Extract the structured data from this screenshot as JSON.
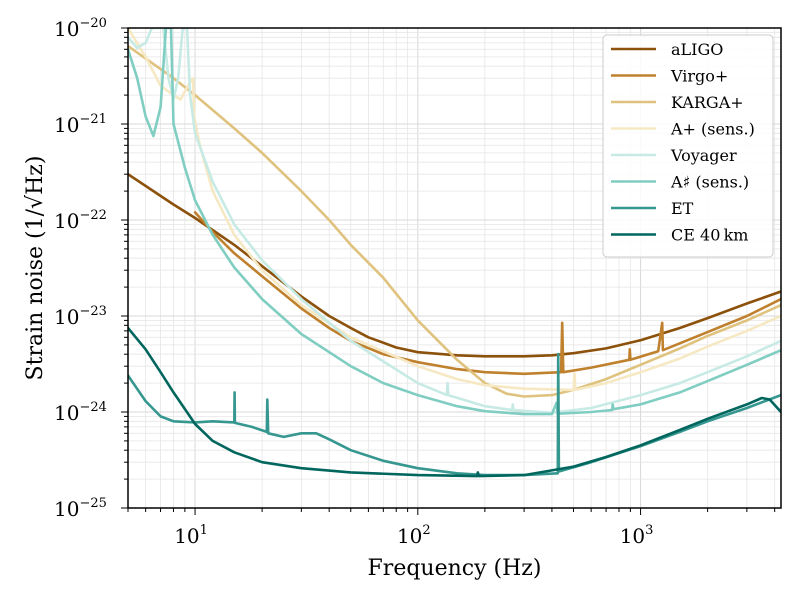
{
  "chart_data": {
    "type": "line",
    "title": "",
    "xlabel": "Frequency (Hz)",
    "ylabel": "Strain noise (1/√Hz)",
    "xscale": "log",
    "yscale": "log",
    "xlim": [
      5,
      4270
    ],
    "ylim": [
      1e-25,
      1e-20
    ],
    "grid": true,
    "legend_position": "top-right",
    "x_ticks": [
      {
        "value": 10,
        "base": "10",
        "exp": "1"
      },
      {
        "value": 100,
        "base": "10",
        "exp": "2"
      },
      {
        "value": 1000,
        "base": "10",
        "exp": "3"
      }
    ],
    "y_ticks": [
      {
        "value": 1e-25,
        "base": "10",
        "exp": "−25"
      },
      {
        "value": 1e-24,
        "base": "10",
        "exp": "−24"
      },
      {
        "value": 1e-23,
        "base": "10",
        "exp": "−23"
      },
      {
        "value": 1e-22,
        "base": "10",
        "exp": "−22"
      },
      {
        "value": 1e-21,
        "base": "10",
        "exp": "−21"
      },
      {
        "value": 1e-20,
        "base": "10",
        "exp": "−20"
      }
    ],
    "series": [
      {
        "name": "aLIGO",
        "color": "#8c510a",
        "points": [
          [
            5,
            3e-22
          ],
          [
            8,
            1.45e-22
          ],
          [
            10,
            1.05e-22
          ],
          [
            15,
            5.5e-23
          ],
          [
            20,
            3.3e-23
          ],
          [
            30,
            1.6e-23
          ],
          [
            40,
            1e-23
          ],
          [
            50,
            7.5e-24
          ],
          [
            60,
            6e-24
          ],
          [
            80,
            4.7e-24
          ],
          [
            100,
            4.2e-24
          ],
          [
            150,
            3.9e-24
          ],
          [
            200,
            3.8e-24
          ],
          [
            300,
            3.8e-24
          ],
          [
            400,
            3.9e-24
          ],
          [
            500,
            4.1e-24
          ],
          [
            700,
            4.6e-24
          ],
          [
            1000,
            5.6e-24
          ],
          [
            1500,
            7.5e-24
          ],
          [
            2000,
            9.5e-24
          ],
          [
            3000,
            1.35e-23
          ],
          [
            4270,
            1.8e-23
          ]
        ]
      },
      {
        "name": "Virgo+",
        "color": "#bf812d",
        "points": [
          [
            10,
            1.2e-22
          ],
          [
            12,
            7.5e-23
          ],
          [
            15,
            4.5e-23
          ],
          [
            20,
            2.6e-23
          ],
          [
            30,
            1.2e-23
          ],
          [
            40,
            7.5e-24
          ],
          [
            50,
            5.5e-24
          ],
          [
            70,
            4e-24
          ],
          [
            100,
            3.3e-24
          ],
          [
            150,
            2.8e-24
          ],
          [
            200,
            2.6e-24
          ],
          [
            300,
            2.5e-24
          ],
          [
            440,
            2.6e-24
          ],
          [
            445,
            8.5e-24
          ],
          [
            450,
            2.6e-24
          ],
          [
            600,
            2.9e-24
          ],
          [
            890,
            3.5e-24
          ],
          [
            895,
            4.5e-24
          ],
          [
            900,
            3.5e-24
          ],
          [
            1200,
            4.3e-24
          ],
          [
            1250,
            8.5e-24
          ],
          [
            1260,
            4.4e-24
          ],
          [
            2000,
            6.8e-24
          ],
          [
            3000,
            1e-23
          ],
          [
            4270,
            1.5e-23
          ]
        ]
      },
      {
        "name": "KARGA+",
        "color": "#dfc27d",
        "points": [
          [
            5,
            6.5e-21
          ],
          [
            8,
            3e-21
          ],
          [
            10,
            2e-21
          ],
          [
            15,
            9e-22
          ],
          [
            20,
            5e-22
          ],
          [
            30,
            2e-22
          ],
          [
            40,
            1e-22
          ],
          [
            50,
            5.5e-23
          ],
          [
            70,
            2.5e-23
          ],
          [
            100,
            9e-24
          ],
          [
            150,
            3.5e-24
          ],
          [
            200,
            2e-24
          ],
          [
            250,
            1.55e-24
          ],
          [
            300,
            1.45e-24
          ],
          [
            400,
            1.5e-24
          ],
          [
            500,
            1.7e-24
          ],
          [
            700,
            2.2e-24
          ],
          [
            1000,
            3.1e-24
          ],
          [
            1500,
            4.6e-24
          ],
          [
            2000,
            6.2e-24
          ],
          [
            3000,
            9e-24
          ],
          [
            4270,
            1.3e-23
          ]
        ]
      },
      {
        "name": "A+ (sens.)",
        "color": "#f6e8c3",
        "points": [
          [
            5,
            1e-20
          ],
          [
            6,
            5e-21
          ],
          [
            7,
            2.5e-21
          ],
          [
            8,
            2e-21
          ],
          [
            8.6,
            1.8e-21
          ],
          [
            9.3,
            2.5e-21
          ],
          [
            9.8,
            3e-21
          ],
          [
            9.9,
            1.2e-21
          ],
          [
            10.5,
            6e-22
          ],
          [
            12,
            2e-22
          ],
          [
            15,
            7e-23
          ],
          [
            20,
            3e-23
          ],
          [
            30,
            1.3e-23
          ],
          [
            50,
            6e-24
          ],
          [
            100,
            3e-24
          ],
          [
            150,
            2.2e-24
          ],
          [
            200,
            1.9e-24
          ],
          [
            300,
            1.75e-24
          ],
          [
            500,
            1.7e-24
          ],
          [
            505,
            2.5e-24
          ],
          [
            510,
            1.7e-24
          ],
          [
            700,
            2e-24
          ],
          [
            1000,
            2.6e-24
          ],
          [
            1500,
            3.6e-24
          ],
          [
            2000,
            4.8e-24
          ],
          [
            3000,
            7e-24
          ],
          [
            4270,
            1e-23
          ]
        ]
      },
      {
        "name": "Voyager",
        "color": "#c7eae5",
        "points": [
          [
            5,
            8e-21
          ],
          [
            5.5,
            6.2e-21
          ],
          [
            6,
            7e-21
          ],
          [
            6.4,
            1e-20
          ],
          [
            7.2,
            1e-20
          ],
          [
            7.6,
            3e-21
          ],
          [
            8.0,
            1.8e-21
          ],
          [
            8.4,
            3e-21
          ],
          [
            8.8,
            1e-20
          ],
          [
            9.2,
            1e-20
          ],
          [
            9.5,
            2e-21
          ],
          [
            10,
            8e-22
          ],
          [
            12,
            2.5e-22
          ],
          [
            15,
            9e-23
          ],
          [
            20,
            3.8e-23
          ],
          [
            30,
            1.5e-23
          ],
          [
            50,
            5.5e-24
          ],
          [
            100,
            2e-24
          ],
          [
            135,
            1.5e-24
          ],
          [
            136,
            2e-24
          ],
          [
            137,
            1.5e-24
          ],
          [
            200,
            1.15e-24
          ],
          [
            265,
            1.05e-24
          ],
          [
            267,
            1.2e-24
          ],
          [
            269,
            1.05e-24
          ],
          [
            400,
            9.8e-25
          ],
          [
            600,
            1.1e-24
          ],
          [
            1000,
            1.5e-24
          ],
          [
            1500,
            2e-24
          ],
          [
            2000,
            2.6e-24
          ],
          [
            3000,
            3.8e-24
          ],
          [
            4270,
            5.5e-24
          ]
        ]
      },
      {
        "name": "A♯ (sens.)",
        "color": "#80cdc1",
        "points": [
          [
            5,
            6e-21
          ],
          [
            5.5,
            3e-21
          ],
          [
            6,
            1.2e-21
          ],
          [
            6.5,
            7.5e-22
          ],
          [
            7,
            1.5e-21
          ],
          [
            7.4,
            1e-20
          ],
          [
            7.8,
            1e-20
          ],
          [
            8,
            1e-21
          ],
          [
            9,
            3.5e-22
          ],
          [
            10,
            1.6e-22
          ],
          [
            12,
            7e-23
          ],
          [
            15,
            3.2e-23
          ],
          [
            20,
            1.5e-23
          ],
          [
            30,
            6.5e-24
          ],
          [
            50,
            3e-24
          ],
          [
            70,
            2e-24
          ],
          [
            100,
            1.5e-24
          ],
          [
            150,
            1.15e-24
          ],
          [
            200,
            1.02e-24
          ],
          [
            300,
            9.5e-25
          ],
          [
            400,
            9.5e-25
          ],
          [
            420,
            1.25e-24
          ],
          [
            425,
            9.6e-25
          ],
          [
            600,
            1e-24
          ],
          [
            745,
            1.05e-24
          ],
          [
            750,
            1.2e-24
          ],
          [
            755,
            1.07e-24
          ],
          [
            1000,
            1.2e-24
          ],
          [
            1500,
            1.6e-24
          ],
          [
            2000,
            2.1e-24
          ],
          [
            3000,
            3.1e-24
          ],
          [
            4270,
            4.4e-24
          ]
        ]
      },
      {
        "name": "ET",
        "color": "#35978f",
        "points": [
          [
            5,
            2.4e-24
          ],
          [
            6,
            1.3e-24
          ],
          [
            7,
            9e-25
          ],
          [
            8,
            8e-25
          ],
          [
            10,
            7.8e-25
          ],
          [
            12,
            8e-25
          ],
          [
            15,
            7.8e-25
          ],
          [
            15.05,
            1.6e-24
          ],
          [
            15.1,
            7.7e-25
          ],
          [
            18,
            7e-25
          ],
          [
            21,
            6.2e-25
          ],
          [
            21.1,
            1.35e-24
          ],
          [
            21.3,
            6e-25
          ],
          [
            25,
            5.5e-25
          ],
          [
            30,
            6e-25
          ],
          [
            35,
            6e-25
          ],
          [
            40,
            5.2e-25
          ],
          [
            50,
            4e-25
          ],
          [
            70,
            3.1e-25
          ],
          [
            100,
            2.6e-25
          ],
          [
            150,
            2.3e-25
          ],
          [
            200,
            2.2e-25
          ],
          [
            300,
            2.2e-25
          ],
          [
            425,
            2.3e-25
          ],
          [
            427,
            4e-24
          ],
          [
            430,
            2.4e-25
          ],
          [
            600,
            3e-25
          ],
          [
            1000,
            4.4e-25
          ],
          [
            1500,
            6.2e-25
          ],
          [
            2000,
            8e-25
          ],
          [
            3000,
            1.1e-24
          ],
          [
            4270,
            1.5e-24
          ]
        ]
      },
      {
        "name": "CE 40 km",
        "color": "#01665e",
        "points": [
          [
            5,
            7.5e-24
          ],
          [
            6,
            4.5e-24
          ],
          [
            7,
            2.6e-24
          ],
          [
            8,
            1.6e-24
          ],
          [
            10,
            7.5e-25
          ],
          [
            12,
            5e-25
          ],
          [
            15,
            3.8e-25
          ],
          [
            20,
            3e-25
          ],
          [
            30,
            2.6e-25
          ],
          [
            50,
            2.35e-25
          ],
          [
            100,
            2.2e-25
          ],
          [
            185,
            2.15e-25
          ],
          [
            186,
            2.35e-25
          ],
          [
            188,
            2.15e-25
          ],
          [
            300,
            2.2e-25
          ],
          [
            500,
            2.7e-25
          ],
          [
            700,
            3.4e-25
          ],
          [
            1000,
            4.5e-25
          ],
          [
            1500,
            6.5e-25
          ],
          [
            2000,
            8.5e-25
          ],
          [
            3000,
            1.2e-24
          ],
          [
            3500,
            1.4e-24
          ],
          [
            3800,
            1.35e-24
          ],
          [
            4270,
            1e-24
          ]
        ]
      }
    ]
  }
}
